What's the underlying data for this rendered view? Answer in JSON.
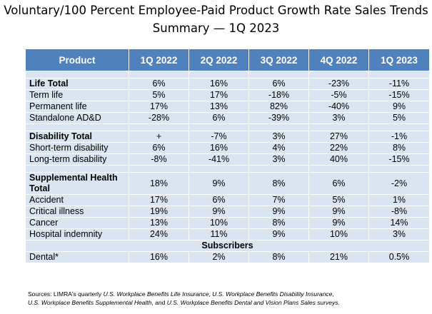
{
  "title": {
    "line1": "Voluntary/100 Percent Employee-Paid Product Growth Rate Sales Trends",
    "line2": "Summary — 1Q 2023"
  },
  "table": {
    "headers": [
      "Product",
      "1Q 2022",
      "2Q 2022",
      "3Q 2022",
      "4Q 2022",
      "1Q 2023"
    ],
    "sections": [
      {
        "rows": [
          {
            "label": "Life Total",
            "bold": true,
            "values": [
              "6%",
              "16%",
              "6%",
              "-23%",
              "-11%"
            ]
          },
          {
            "label": "Term life",
            "values": [
              "5%",
              "17%",
              "-18%",
              "-5%",
              "-15%"
            ]
          },
          {
            "label": "Permanent life",
            "values": [
              "17%",
              "13%",
              "82%",
              "-40%",
              "9%"
            ]
          },
          {
            "label": "Standalone AD&D",
            "values": [
              "-28%",
              "6%",
              "-39%",
              "3%",
              "5%"
            ]
          }
        ]
      },
      {
        "rows": [
          {
            "label": "Disability Total",
            "bold": true,
            "values": [
              "+",
              "-7%",
              "3%",
              "27%",
              "-1%"
            ]
          },
          {
            "label": "Short-term disability",
            "values": [
              "6%",
              "16%",
              "4%",
              "22%",
              "8%"
            ]
          },
          {
            "label": "Long-term disability",
            "values": [
              "-8%",
              "-41%",
              "3%",
              "40%",
              "-15%"
            ]
          }
        ]
      },
      {
        "rows": [
          {
            "label": "Supplemental Health Total",
            "bold": true,
            "values": [
              "18%",
              "9%",
              "8%",
              "6%",
              "-2%"
            ]
          },
          {
            "label": "Accident",
            "values": [
              "17%",
              "6%",
              "7%",
              "5%",
              "1%"
            ]
          },
          {
            "label": "Critical illness",
            "values": [
              "19%",
              "9%",
              "9%",
              "9%",
              "-8%"
            ]
          },
          {
            "label": "Cancer",
            "values": [
              "13%",
              "10%",
              "8%",
              "9%",
              "14%"
            ]
          },
          {
            "label": "Hospital indemnity",
            "values": [
              "24%",
              "11%",
              "9%",
              "10%",
              "3%"
            ]
          }
        ]
      }
    ],
    "subscribers_label": "Subscribers",
    "dental": {
      "label": "Dental*",
      "values": [
        "16%",
        "2%",
        "8%",
        "21%",
        "0.5%"
      ]
    }
  },
  "source": {
    "prefix": "Sources: LIMRA's quarterly ",
    "t1": "U.S. Workplace Benefits Life Insurance",
    "sep1": ", ",
    "t2": "U.S. Workplace Benefits Disability Insurance",
    "sep2": ",",
    "t3": "U.S. Workplace Benefits Supplemental Health",
    "sep3": ", and ",
    "t4": "U.S. Workplace Benefits Dental and Vision Plans Sales surveys",
    "suffix": "."
  },
  "colors": {
    "header_bg": "#4f81bd",
    "row_bg": "#dae5f1",
    "header_text": "#ffffff"
  }
}
